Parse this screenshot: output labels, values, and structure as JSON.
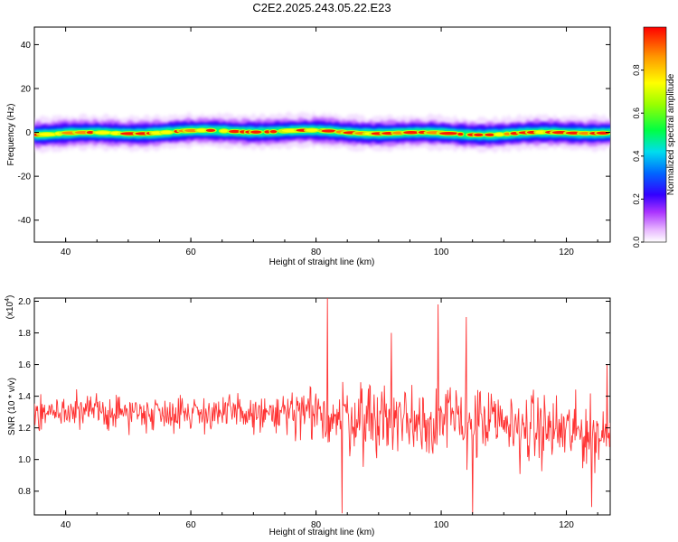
{
  "title": "C2E2.2025.243.05.22.E23",
  "chart_data": [
    {
      "type": "heatmap",
      "xlabel": "Height of straight line (km)",
      "ylabel": "Frequency (Hz)",
      "xlim": [
        35,
        127
      ],
      "ylim": [
        -50,
        48
      ],
      "xticks": [
        40,
        60,
        80,
        100,
        120
      ],
      "yticks": [
        40,
        20,
        0,
        -20,
        -40
      ],
      "band_center_hz": 0,
      "band_halfwidth_hz": 4,
      "colorbar": {
        "label": "Normalized spectral amplitude",
        "range": [
          0,
          1
        ],
        "ticks": [
          "0.0",
          "0.2",
          "0.4",
          "0.6",
          "0.8"
        ],
        "colors": [
          "#ffffff",
          "#cc66ff",
          "#6a00ff",
          "#0000ff",
          "#00e5ff",
          "#00ff00",
          "#ffff00",
          "#ff8800",
          "#ff0000"
        ]
      }
    },
    {
      "type": "line",
      "xlabel": "Height of straight line (km)",
      "ylabel": "SNR (10 * v/v)",
      "multiplier_label": "(x10",
      "multiplier_exp": "4",
      "xlim": [
        35,
        127
      ],
      "ylim": [
        0.65,
        2.02
      ],
      "xticks": [
        40,
        60,
        80,
        100,
        120
      ],
      "yticks": [
        "0.8",
        "1.0",
        "1.2",
        "1.4",
        "1.6",
        "1.8",
        "2.0"
      ],
      "series_color": "#ff3333",
      "baseline": [
        [
          35,
          1.3
        ],
        [
          60,
          1.3
        ],
        [
          75,
          1.28
        ],
        [
          100,
          1.25
        ],
        [
          127,
          1.15
        ]
      ],
      "spread": [
        [
          35,
          0.09
        ],
        [
          70,
          0.1
        ],
        [
          78,
          0.16
        ],
        [
          90,
          0.22
        ],
        [
          110,
          0.2
        ],
        [
          127,
          0.18
        ]
      ],
      "peaks": [
        [
          81.8,
          2.02
        ],
        [
          84.2,
          0.66
        ],
        [
          92,
          1.8
        ],
        [
          99.5,
          1.98
        ],
        [
          104,
          1.9
        ],
        [
          105,
          0.66
        ],
        [
          124,
          0.7
        ],
        [
          126.5,
          1.6
        ]
      ]
    }
  ]
}
